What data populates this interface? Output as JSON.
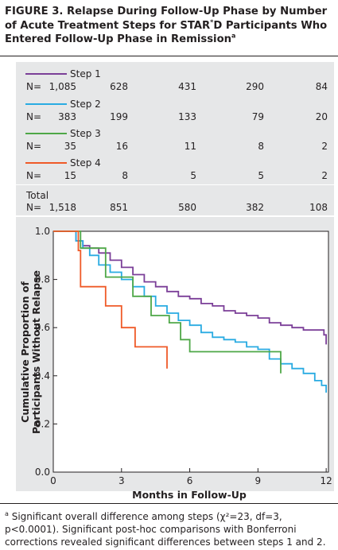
{
  "figure": {
    "title_bold": "FIGURE 3. Relapse During Follow-Up Phase by Number of Acute Treatment Steps for STAR",
    "title_sup": "*",
    "title_rest": "D Participants Who Entered Follow-Up Phase in Remission",
    "title_note": "a"
  },
  "table": {
    "rows": [
      {
        "label": "Step 1",
        "n_prefix": "N=",
        "n": "1,085",
        "counts": [
          "628",
          "431",
          "290",
          "84"
        ],
        "color": "#7b3f98"
      },
      {
        "label": "Step 2",
        "n_prefix": "N=",
        "n": "383",
        "counts": [
          "199",
          "133",
          "79",
          "20"
        ],
        "color": "#29abe2"
      },
      {
        "label": "Step 3",
        "n_prefix": "N=",
        "n": "35",
        "counts": [
          "16",
          "11",
          "8",
          "2"
        ],
        "color": "#4ea747"
      },
      {
        "label": "Step 4",
        "n_prefix": "N=",
        "n": "15",
        "counts": [
          "8",
          "5",
          "5",
          "2"
        ],
        "color": "#ef5a28"
      }
    ],
    "total": {
      "label": "Total",
      "n_prefix": "N=",
      "n": "1,518",
      "counts": [
        "851",
        "580",
        "382",
        "108"
      ]
    }
  },
  "chart_data": {
    "type": "line",
    "subtype": "kaplan-meier step curves",
    "xlabel": "Months in Follow-Up",
    "ylabel_line1": "Cumulative Proportion of",
    "ylabel_line2": "Participants Without Relapse",
    "xlim": [
      0,
      12.1
    ],
    "ylim": [
      0,
      1.0
    ],
    "x_ticks": [
      0,
      3,
      6,
      9,
      12
    ],
    "x_tick_labels": [
      "0",
      "3",
      "6",
      "9",
      "12"
    ],
    "y_ticks": [
      0.0,
      0.2,
      0.4,
      0.6,
      0.8,
      1.0
    ],
    "y_tick_labels": [
      "0.0",
      "0.2",
      "0.4",
      "0.6",
      "0.8",
      "1.0"
    ],
    "grid": false,
    "series": [
      {
        "name": "Step 1",
        "color": "#7b3f98",
        "x": [
          0,
          0.9,
          1.0,
          1.3,
          1.6,
          2.0,
          2.5,
          3.0,
          3.5,
          4.0,
          4.5,
          5.0,
          5.5,
          6.0,
          6.5,
          7.0,
          7.5,
          8.0,
          8.5,
          9.0,
          9.5,
          10.0,
          10.5,
          11.0,
          11.5,
          11.9,
          12.0
        ],
        "y": [
          1.0,
          1.0,
          0.96,
          0.94,
          0.93,
          0.91,
          0.88,
          0.85,
          0.82,
          0.79,
          0.77,
          0.75,
          0.73,
          0.72,
          0.7,
          0.69,
          0.67,
          0.66,
          0.65,
          0.64,
          0.62,
          0.61,
          0.6,
          0.59,
          0.59,
          0.57,
          0.53
        ]
      },
      {
        "name": "Step 2",
        "color": "#29abe2",
        "x": [
          0,
          0.8,
          1.0,
          1.3,
          1.6,
          2.0,
          2.5,
          3.0,
          3.5,
          4.0,
          4.5,
          5.0,
          5.5,
          6.0,
          6.5,
          7.0,
          7.5,
          8.0,
          8.5,
          9.0,
          9.5,
          10.0,
          10.5,
          11.0,
          11.5,
          11.8,
          12.0
        ],
        "y": [
          1.0,
          1.0,
          0.96,
          0.93,
          0.9,
          0.86,
          0.83,
          0.8,
          0.77,
          0.73,
          0.69,
          0.66,
          0.63,
          0.61,
          0.58,
          0.56,
          0.55,
          0.54,
          0.52,
          0.51,
          0.47,
          0.45,
          0.43,
          0.41,
          0.38,
          0.36,
          0.33
        ]
      },
      {
        "name": "Step 3",
        "color": "#4ea747",
        "x": [
          0,
          1.0,
          1.2,
          1.8,
          2.3,
          3.0,
          3.5,
          4.3,
          5.1,
          5.6,
          6.0,
          10.0,
          10.0
        ],
        "y": [
          1.0,
          1.0,
          0.93,
          0.93,
          0.81,
          0.81,
          0.73,
          0.65,
          0.62,
          0.55,
          0.5,
          0.5,
          0.41
        ]
      },
      {
        "name": "Step 4",
        "color": "#ef5a28",
        "x": [
          0,
          1.0,
          1.1,
          1.2,
          2.3,
          3.0,
          3.6,
          5.0
        ],
        "y": [
          1.0,
          1.0,
          0.92,
          0.77,
          0.69,
          0.6,
          0.52,
          0.43
        ]
      }
    ]
  },
  "footnote": {
    "marker": "a",
    "text": "Significant overall difference among steps (χ²=23, df=3, p<0.0001). Significant post-hoc comparisons with Bonferroni corrections revealed significant differences between steps 1 and 2."
  }
}
